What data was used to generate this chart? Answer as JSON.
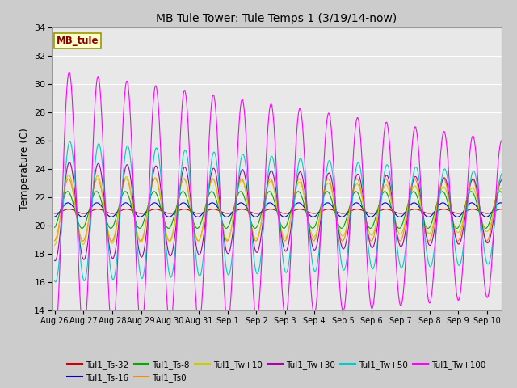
{
  "title": "MB Tule Tower: Tule Temps 1 (3/19/14-now)",
  "ylabel": "Temperature (C)",
  "ylim": [
    14,
    34
  ],
  "yticks": [
    14,
    16,
    18,
    20,
    22,
    24,
    26,
    28,
    30,
    32,
    34
  ],
  "legend_label": "MB_tule",
  "tick_labels": [
    "Aug 26",
    "Aug 27",
    "Aug 28",
    "Aug 29",
    "Aug 30",
    "Aug 31",
    "Sep 1",
    "Sep 2",
    "Sep 3",
    "Sep 4",
    "Sep 5",
    "Sep 6",
    "Sep 7",
    "Sep 8",
    "Sep 9",
    "Sep 10"
  ],
  "series": [
    {
      "label": "Tul1_Ts-32",
      "color": "#cc0000"
    },
    {
      "label": "Tul1_Ts-16",
      "color": "#0000cc"
    },
    {
      "label": "Tul1_Ts-8",
      "color": "#00aa00"
    },
    {
      "label": "Tul1_Ts0",
      "color": "#ff8800"
    },
    {
      "label": "Tul1_Tw+10",
      "color": "#cccc00"
    },
    {
      "label": "Tul1_Tw+30",
      "color": "#aa00aa"
    },
    {
      "label": "Tul1_Tw+50",
      "color": "#00cccc"
    },
    {
      "label": "Tul1_Tw+100",
      "color": "#ff00ff"
    }
  ]
}
